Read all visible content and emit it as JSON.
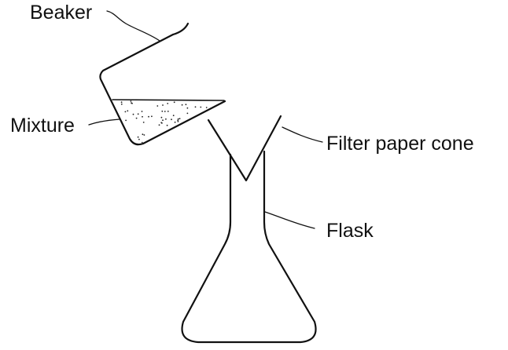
{
  "labels": {
    "beaker": "Beaker",
    "mixture": "Mixture",
    "filter_paper_cone": "Filter paper cone",
    "flask": "Flask"
  },
  "colors": {
    "ink": "#111111",
    "background": "#ffffff"
  }
}
